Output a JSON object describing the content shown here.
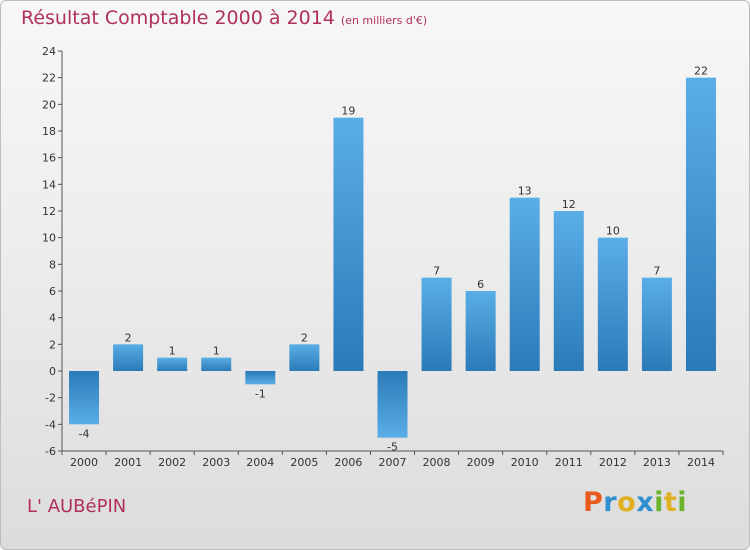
{
  "header": {
    "title": "Résultat Comptable 2000 à 2014",
    "subtitle": "(en milliers d'€)"
  },
  "footer": {
    "commune": "L' AUBéPIN",
    "brand_letters": [
      {
        "char": "P",
        "color": "#e8591a"
      },
      {
        "char": "r",
        "color": "#2f8fd0"
      },
      {
        "char": "o",
        "color": "#e0b020"
      },
      {
        "char": "x",
        "color": "#2f8fd0"
      },
      {
        "char": "i",
        "color": "#6ab42d"
      },
      {
        "char": "t",
        "color": "#e0b020"
      },
      {
        "char": "i",
        "color": "#6ab42d"
      }
    ]
  },
  "chart_data": {
    "type": "bar",
    "title": "Résultat Comptable 2000 à 2014",
    "subtitle": "(en milliers d'€)",
    "categories": [
      "2000",
      "2001",
      "2002",
      "2003",
      "2004",
      "2005",
      "2006",
      "2007",
      "2008",
      "2009",
      "2010",
      "2011",
      "2012",
      "2013",
      "2014"
    ],
    "values": [
      -4,
      2,
      1,
      1,
      -1,
      2,
      19,
      -5,
      7,
      6,
      13,
      12,
      10,
      7,
      22
    ],
    "value_labels": [
      "-4",
      "2",
      "1",
      "1",
      "-1",
      "2",
      "19",
      "-5",
      "7",
      "6",
      "13",
      "12",
      "10",
      "7",
      "22"
    ],
    "ylim": [
      -6,
      24
    ],
    "yticks": [
      -6,
      -4,
      -2,
      0,
      2,
      4,
      6,
      8,
      10,
      12,
      14,
      16,
      18,
      20,
      22,
      24
    ],
    "ytick_labels": [
      "-6",
      "-4",
      "-2",
      "0",
      "2",
      "4",
      "6",
      "8",
      "10",
      "12",
      "14",
      "16",
      "18",
      "20",
      "22",
      "24"
    ],
    "grid": false,
    "bar_color_light": "#5aaee6",
    "bar_color_dark": "#2a7ab8",
    "xlabel": "",
    "ylabel": ""
  }
}
